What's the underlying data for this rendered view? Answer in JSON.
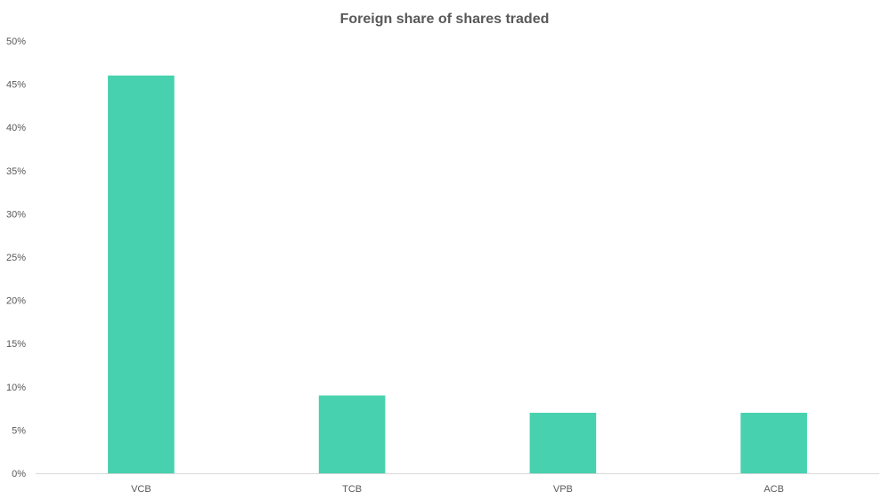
{
  "chart_data": {
    "type": "bar",
    "title": "Foreign share of shares traded",
    "xlabel": "",
    "ylabel": "",
    "categories": [
      "VCB",
      "TCB",
      "VPB",
      "ACB"
    ],
    "values": [
      46,
      9,
      7,
      7
    ],
    "ylim": [
      0,
      50
    ],
    "yticks": [
      "0%",
      "5%",
      "10%",
      "15%",
      "20%",
      "25%",
      "30%",
      "35%",
      "40%",
      "45%",
      "50%"
    ],
    "grid": false,
    "legend": "none",
    "bar_color": "#48D1AE"
  }
}
